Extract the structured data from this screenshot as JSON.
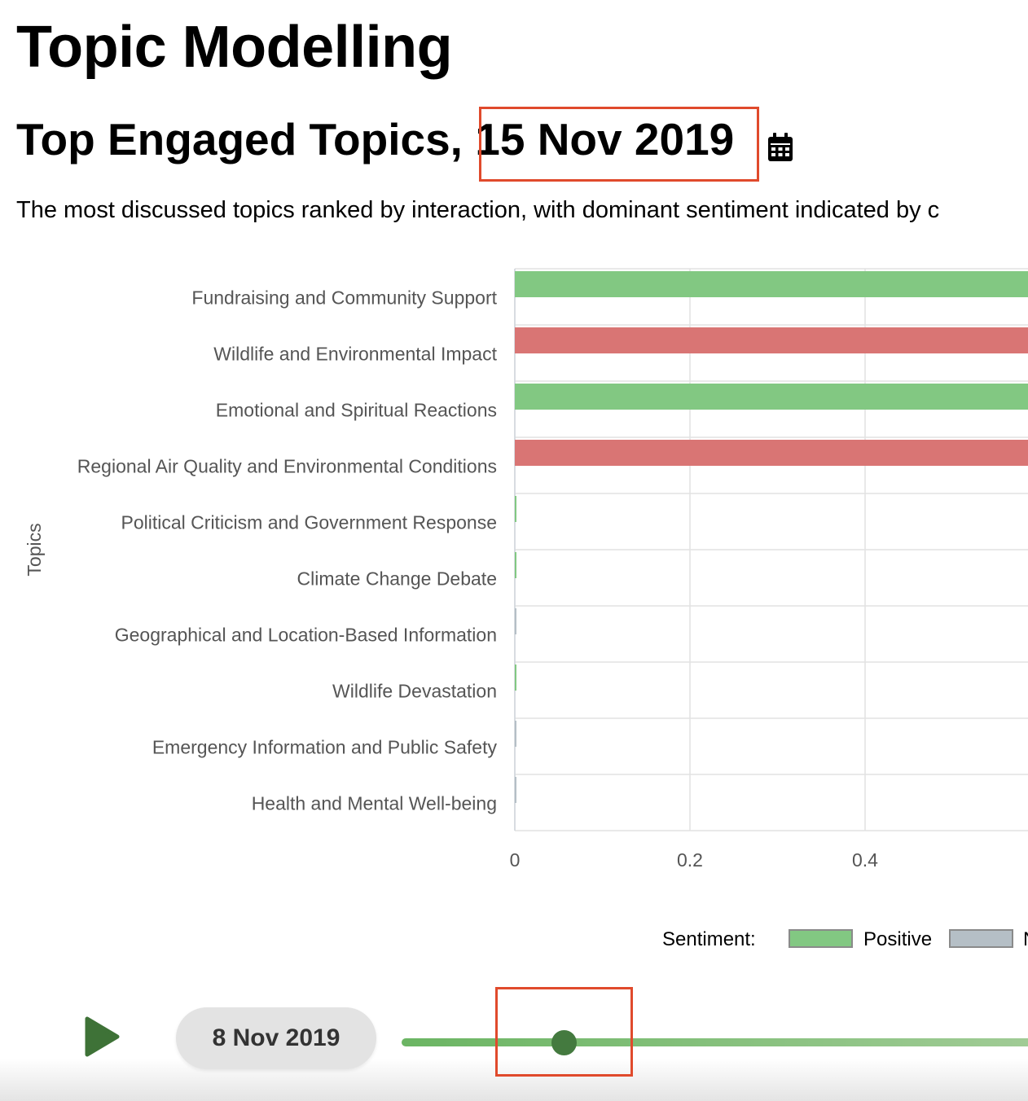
{
  "page": {
    "title": "Topic Modelling",
    "subtitle_prefix": "Top Engaged Topics,",
    "selected_date": "15 Nov 2019",
    "description": "The most discussed topics ranked by interaction, with dominant sentiment indicated by c"
  },
  "icons": {
    "calendar": "calendar-icon",
    "play": "play-icon"
  },
  "colors": {
    "positive": "#82c882",
    "negative": "#d97574",
    "neutral": "#b5bfc6",
    "highlight": "#e04a2c",
    "slider_thumb": "#447a3f",
    "play": "#3e7237"
  },
  "chart_data": {
    "type": "bar",
    "orientation": "horizontal",
    "ylabel": "Topics",
    "xlabel": "",
    "xlim": [
      0,
      0.6
    ],
    "x_ticks": [
      0,
      0.2,
      0.4
    ],
    "grid": true,
    "categories": [
      "Fundraising and Community Support",
      "Wildlife and Environmental Impact",
      "Emotional and Spiritual Reactions",
      "Regional Air Quality and Environmental Conditions",
      "Political Criticism and Government Response",
      "Climate Change Debate",
      "Geographical and Location-Based Information",
      "Wildlife Devastation",
      "Emergency Information and Public Safety",
      "Health and Mental Well-being"
    ],
    "values": [
      0.6,
      0.6,
      0.6,
      0.6,
      0,
      0,
      0,
      0,
      0,
      0
    ],
    "sentiment": [
      "Positive",
      "Negative",
      "Positive",
      "Negative",
      "Positive",
      "Positive",
      "Neutral",
      "Positive",
      "Neutral",
      "Neutral"
    ],
    "legend": {
      "title": "Sentiment:",
      "placement": "bottom-right",
      "entries": [
        {
          "label": "Positive",
          "color": "#82c882"
        },
        {
          "label": "N",
          "color": "#b5bfc6"
        }
      ]
    }
  },
  "timeline": {
    "current_date": "8 Nov 2019",
    "slider_position": 0.25
  }
}
